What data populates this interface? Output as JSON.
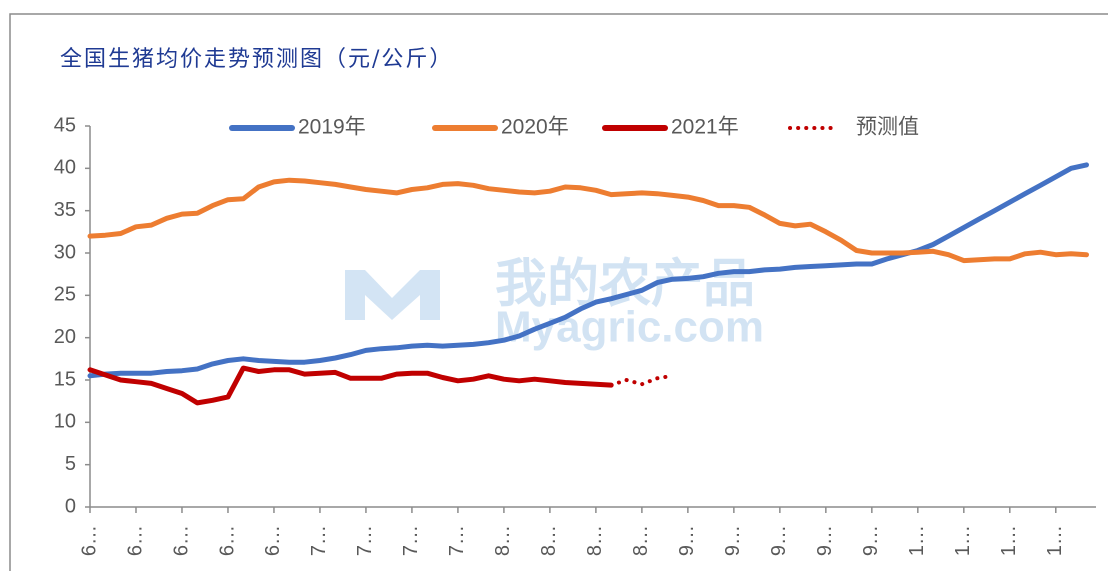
{
  "chart_data": {
    "type": "line",
    "title": "全国生猪均价走势预测图（元/公斤）",
    "watermark": [
      "我的农产品",
      "Myagric.com"
    ],
    "categories": [
      "6…",
      null,
      null,
      "6…",
      null,
      null,
      "6…",
      null,
      null,
      "6…",
      null,
      null,
      "6…",
      null,
      null,
      "7…",
      null,
      null,
      "7…",
      null,
      null,
      "7…",
      null,
      null,
      "7…",
      null,
      null,
      "8…",
      null,
      null,
      "8…",
      null,
      null,
      "8…",
      null,
      null,
      "8…",
      null,
      null,
      "9…",
      null,
      null,
      "9…",
      null,
      null,
      "9…",
      null,
      null,
      "9…",
      null,
      null,
      "9…",
      null,
      null,
      "1…",
      null,
      null,
      "1…",
      null,
      null,
      "1…",
      null,
      null,
      "1…",
      null,
      null
    ],
    "ylim": [
      0,
      45
    ],
    "yticks": [
      0,
      5,
      10,
      15,
      20,
      25,
      30,
      35,
      40,
      45
    ],
    "grid": false,
    "legend": "top",
    "series": [
      {
        "name": "2019年",
        "color": "#4472c4",
        "style": "solid",
        "values": [
          15.5,
          15.7,
          15.8,
          15.8,
          15.8,
          16,
          16.1,
          16.3,
          16.9,
          17.3,
          17.5,
          17.3,
          17.2,
          17.1,
          17.1,
          17.3,
          17.6,
          18,
          18.5,
          18.7,
          18.8,
          19,
          19.1,
          19,
          19.1,
          19.2,
          19.4,
          19.7,
          20.2,
          21,
          21.7,
          22.4,
          23.4,
          24.2,
          24.6,
          25.1,
          25.6,
          26.5,
          26.9,
          27,
          27.2,
          27.6,
          27.8,
          27.8,
          28,
          28.1,
          28.3,
          28.4,
          28.5,
          28.6,
          28.7,
          28.7,
          29.3,
          29.8,
          30.3,
          31,
          32,
          33,
          34,
          35,
          36,
          37,
          38,
          39,
          40,
          40.4
        ]
      },
      {
        "name": "2020年",
        "color": "#ed7d31",
        "style": "solid",
        "values": [
          32,
          32.1,
          32.3,
          33.1,
          33.3,
          34.1,
          34.6,
          34.7,
          35.6,
          36.3,
          36.4,
          37.8,
          38.4,
          38.6,
          38.5,
          38.3,
          38.1,
          37.8,
          37.5,
          37.3,
          37.1,
          37.5,
          37.7,
          38.1,
          38.2,
          38,
          37.6,
          37.4,
          37.2,
          37.1,
          37.3,
          37.8,
          37.7,
          37.4,
          36.9,
          37,
          37.1,
          37,
          36.8,
          36.6,
          36.2,
          35.6,
          35.6,
          35.4,
          34.5,
          33.5,
          33.2,
          33.4,
          32.5,
          31.5,
          30.3,
          30,
          30,
          30,
          30.1,
          30.2,
          29.8,
          29.1,
          29.2,
          29.3,
          29.3,
          29.9,
          30.1,
          29.8,
          29.9,
          29.8
        ]
      },
      {
        "name": "2021年",
        "color": "#c00000",
        "style": "solid",
        "values": [
          16.2,
          15.6,
          15,
          14.8,
          14.6,
          14,
          13.4,
          12.3,
          12.6,
          13,
          16.4,
          16,
          16.2,
          16.2,
          15.7,
          15.8,
          15.9,
          15.2,
          15.2,
          15.2,
          15.7,
          15.8,
          15.8,
          15.3,
          14.9,
          15.1,
          15.5,
          15.1,
          14.9,
          15.1,
          14.9,
          14.7,
          14.6,
          14.5,
          14.4,
          null,
          null,
          null,
          null,
          null,
          null,
          null,
          null,
          null,
          null,
          null,
          null,
          null,
          null,
          null,
          null,
          null,
          null,
          null,
          null,
          null,
          null,
          null,
          null,
          null,
          null,
          null,
          null,
          null,
          null,
          null
        ]
      },
      {
        "name": "预测值",
        "color": "#c00000",
        "style": "dotted",
        "values": [
          null,
          null,
          null,
          null,
          null,
          null,
          null,
          null,
          null,
          null,
          null,
          null,
          null,
          null,
          null,
          null,
          null,
          null,
          null,
          null,
          null,
          null,
          null,
          null,
          null,
          null,
          null,
          null,
          null,
          null,
          null,
          null,
          null,
          null,
          14.4,
          15,
          14.5,
          15.2,
          15.5,
          null,
          null,
          null,
          null,
          null,
          null,
          null,
          null,
          null,
          null,
          null,
          null,
          null,
          null,
          null,
          null,
          null,
          null,
          null,
          null,
          null,
          null,
          null,
          null,
          null,
          null,
          null
        ]
      }
    ]
  }
}
